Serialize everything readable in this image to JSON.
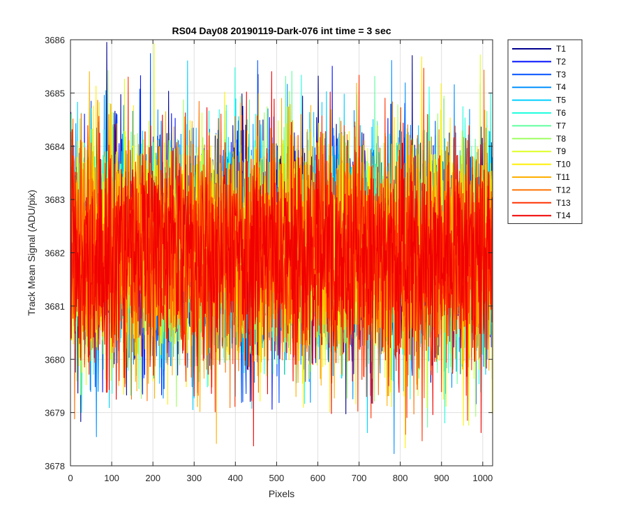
{
  "chart_data": {
    "type": "line",
    "title": "RS04 Day08 20190119-Dark-076 int time = 3 sec",
    "xlabel": "Pixels",
    "ylabel": "Track Mean Signal (ADU/pix)",
    "xlim": [
      0,
      1024
    ],
    "ylim": [
      3678,
      3686
    ],
    "xticks": [
      0,
      100,
      200,
      300,
      400,
      500,
      600,
      700,
      800,
      900,
      1000
    ],
    "yticks": [
      3678,
      3679,
      3680,
      3681,
      3682,
      3683,
      3684,
      3685,
      3686
    ],
    "grid": true,
    "legend_position": "outside-top-right",
    "series_shape": {
      "mean": 3682.0,
      "std": 1.05,
      "min": 3678.2,
      "max": 3686.0,
      "num_points": 1024
    },
    "series": [
      {
        "name": "T1",
        "color": "#00008F"
      },
      {
        "name": "T2",
        "color": "#0010FF"
      },
      {
        "name": "T3",
        "color": "#0050FF"
      },
      {
        "name": "T4",
        "color": "#0090FF"
      },
      {
        "name": "T5",
        "color": "#00CFFF"
      },
      {
        "name": "T6",
        "color": "#20FFDF"
      },
      {
        "name": "T7",
        "color": "#60FF9F"
      },
      {
        "name": "T8",
        "color": "#9FFF60"
      },
      {
        "name": "T9",
        "color": "#DFFF20"
      },
      {
        "name": "T10",
        "color": "#FFEF00"
      },
      {
        "name": "T11",
        "color": "#FFB000"
      },
      {
        "name": "T12",
        "color": "#FF7000"
      },
      {
        "name": "T13",
        "color": "#FF3000"
      },
      {
        "name": "T14",
        "color": "#F00000"
      }
    ]
  }
}
